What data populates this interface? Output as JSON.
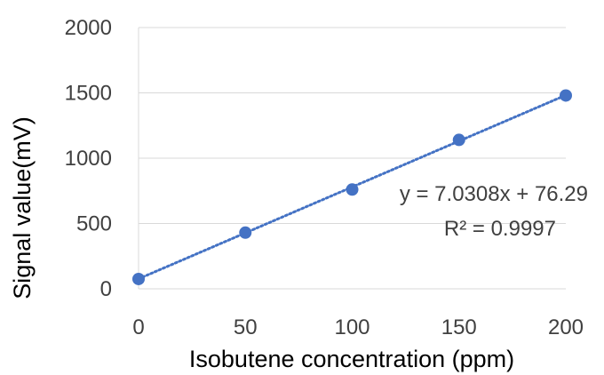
{
  "chart_data": {
    "type": "scatter",
    "title": "",
    "xlabel": "Isobutene concentration (ppm)",
    "ylabel": "Signal value(mV)",
    "xlim": [
      0,
      200
    ],
    "ylim": [
      0,
      2000
    ],
    "x_ticks": [
      "0",
      "50",
      "100",
      "150",
      "200"
    ],
    "y_ticks": [
      "0",
      "500",
      "1000",
      "1500",
      "2000"
    ],
    "grid": "horizontal",
    "legend": "none",
    "series": [
      {
        "x": [
          0,
          50,
          100,
          150,
          200
        ],
        "y": [
          75,
          430,
          760,
          1140,
          1480
        ],
        "marker_color": "#4472C4"
      }
    ],
    "trendline": {
      "type": "linear",
      "slope": 7.0308,
      "intercept": 76.29,
      "style": "dotted",
      "color": "#4472C4"
    },
    "annotations": {
      "equation": "y = 7.0308x + 76.29",
      "r_squared": "R² = 0.9997"
    }
  }
}
